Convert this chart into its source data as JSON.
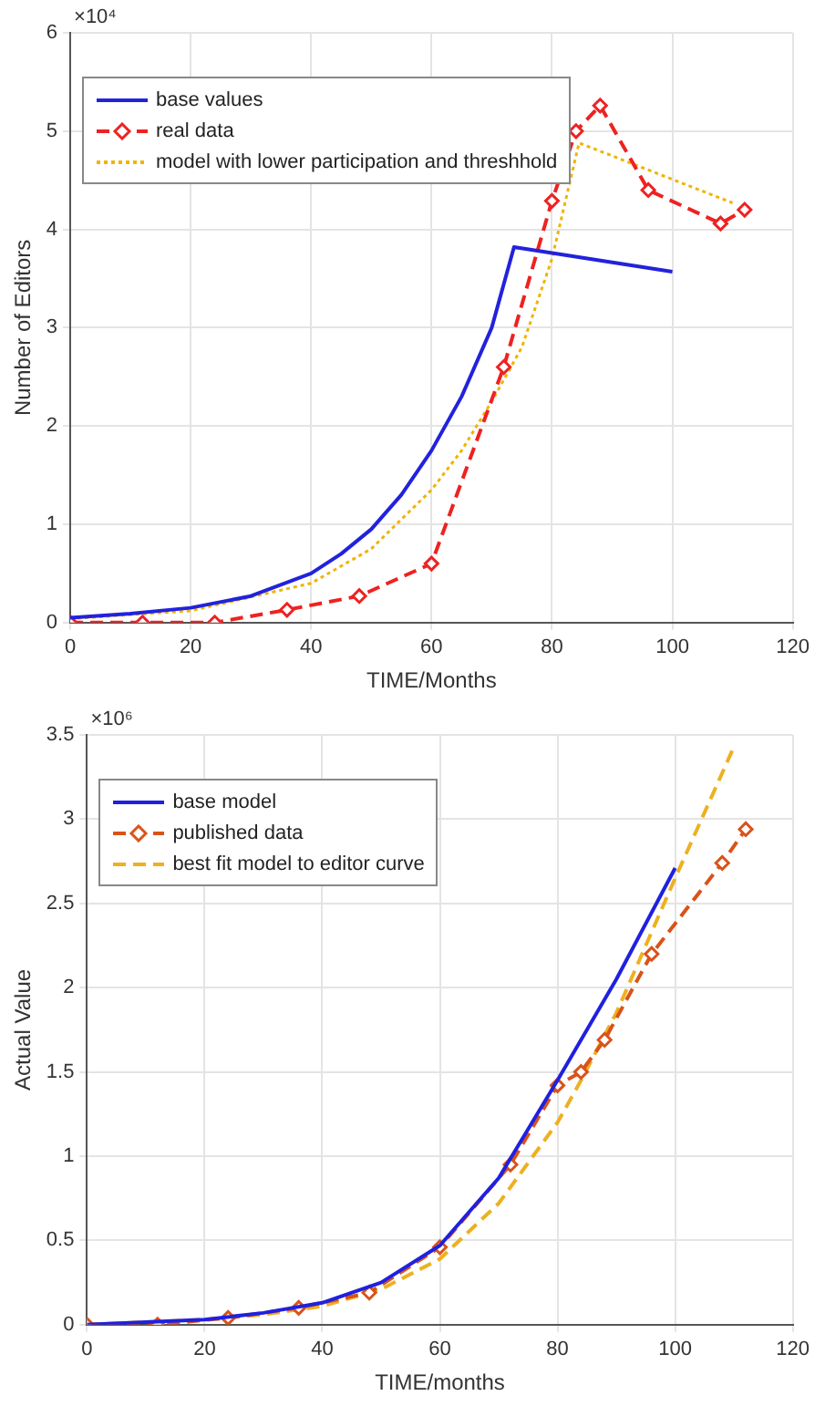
{
  "chart_data": [
    {
      "type": "line",
      "xlabel": "TIME/Months",
      "ylabel": "Number of Editors",
      "annotations": [
        "×10⁴"
      ],
      "xlim": [
        0,
        120
      ],
      "xticks": [
        0,
        20,
        40,
        60,
        80,
        100,
        120
      ],
      "ylim": [
        0,
        6
      ],
      "yticks": [
        0,
        1,
        2,
        3,
        4,
        5,
        6
      ],
      "grid": true,
      "legend": "top left",
      "series": [
        {
          "name": "base values",
          "color": "#2222dd",
          "line_style": "solid",
          "marker": "none",
          "x": [
            0,
            10,
            20,
            30,
            40,
            45,
            50,
            55,
            60,
            65,
            70,
            73.7,
            100
          ],
          "values": [
            0.05,
            0.09,
            0.15,
            0.27,
            0.5,
            0.7,
            0.95,
            1.3,
            1.75,
            2.3,
            3.0,
            3.82,
            3.57
          ]
        },
        {
          "name": "real data",
          "color": "#ee2222",
          "line_style": "dashed",
          "marker": "diamond",
          "x": [
            0,
            12,
            24,
            36,
            48,
            60,
            72,
            80,
            84,
            88,
            96,
            108,
            112
          ],
          "values": [
            0,
            0,
            0,
            0.13,
            0.27,
            0.6,
            2.6,
            4.29,
            5.0,
            5.26,
            4.4,
            4.06,
            4.2
          ]
        },
        {
          "name": "model with lower participation and threshhold",
          "color": "#f0b400",
          "line_style": "dotted",
          "marker": "none",
          "x": [
            0,
            20,
            40,
            50,
            60,
            65,
            70,
            75,
            80,
            84.5,
            110
          ],
          "values": [
            0.04,
            0.12,
            0.4,
            0.75,
            1.35,
            1.75,
            2.25,
            2.8,
            3.7,
            4.88,
            4.27
          ]
        }
      ]
    },
    {
      "type": "line",
      "xlabel": "TIME/months",
      "ylabel": "Actual Value",
      "annotations": [
        "×10⁶"
      ],
      "xlim": [
        0,
        120
      ],
      "xticks": [
        0,
        20,
        40,
        60,
        80,
        100,
        120
      ],
      "ylim": [
        0,
        3.5
      ],
      "yticks": [
        0,
        0.5,
        1,
        1.5,
        2,
        2.5,
        3,
        3.5
      ],
      "grid": true,
      "legend": "top left",
      "series": [
        {
          "name": "base model",
          "color": "#2020e0",
          "line_style": "solid",
          "marker": "none",
          "x": [
            0,
            20,
            30,
            40,
            50,
            60,
            70,
            80,
            90,
            100
          ],
          "values": [
            0,
            0.03,
            0.07,
            0.13,
            0.25,
            0.47,
            0.87,
            1.45,
            2.05,
            2.71
          ]
        },
        {
          "name": "published data",
          "color": "#d95319",
          "line_style": "dashed",
          "marker": "diamond",
          "x": [
            0,
            12,
            24,
            36,
            48,
            60,
            72,
            80,
            84,
            88,
            96,
            108,
            112
          ],
          "values": [
            0,
            0,
            0.04,
            0.1,
            0.19,
            0.46,
            0.95,
            1.42,
            1.5,
            1.69,
            2.2,
            2.74,
            2.94
          ]
        },
        {
          "name": "best fit model to editor curve",
          "color": "#edb120",
          "line_style": "dashed",
          "marker": "none",
          "x": [
            0,
            20,
            30,
            40,
            50,
            60,
            70,
            80,
            84,
            90,
            100,
            110
          ],
          "values": [
            0,
            0.03,
            0.06,
            0.11,
            0.21,
            0.39,
            0.72,
            1.2,
            1.45,
            1.85,
            2.65,
            3.43
          ]
        }
      ]
    }
  ]
}
